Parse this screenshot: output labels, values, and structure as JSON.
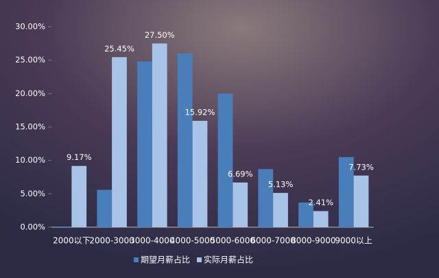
{
  "chart_data": {
    "type": "bar",
    "categories": [
      "2000以下",
      "2000-3000",
      "3000-4000",
      "4000-5000",
      "5000-6000",
      "6000-7000",
      "8000-9000",
      "9000以上"
    ],
    "series": [
      {
        "name": "期望月薪占比",
        "color": "#4a7ebb",
        "values": [
          0.1,
          5.6,
          24.8,
          26.0,
          20.0,
          8.7,
          3.7,
          10.5
        ]
      },
      {
        "name": "实际月薪占比",
        "color": "#a7c4e8",
        "values": [
          9.17,
          25.45,
          27.5,
          15.92,
          6.69,
          5.13,
          2.41,
          7.73
        ],
        "value_labels": [
          "9.17%",
          "25.45%",
          "27.50%",
          "15.92%",
          "6.69%",
          "5.13%",
          "2.41%",
          "7.73%"
        ]
      }
    ],
    "ylim": [
      0,
      30
    ],
    "yticks": [
      {
        "value": 0,
        "label": "0.00%"
      },
      {
        "value": 5,
        "label": "5.00%"
      },
      {
        "value": 10,
        "label": "10.00%"
      },
      {
        "value": 15,
        "label": "15.00%"
      },
      {
        "value": 20,
        "label": "20.00%"
      },
      {
        "value": 25,
        "label": "25.00%"
      },
      {
        "value": 30,
        "label": "30.00%"
      }
    ],
    "legend": "bottom"
  }
}
